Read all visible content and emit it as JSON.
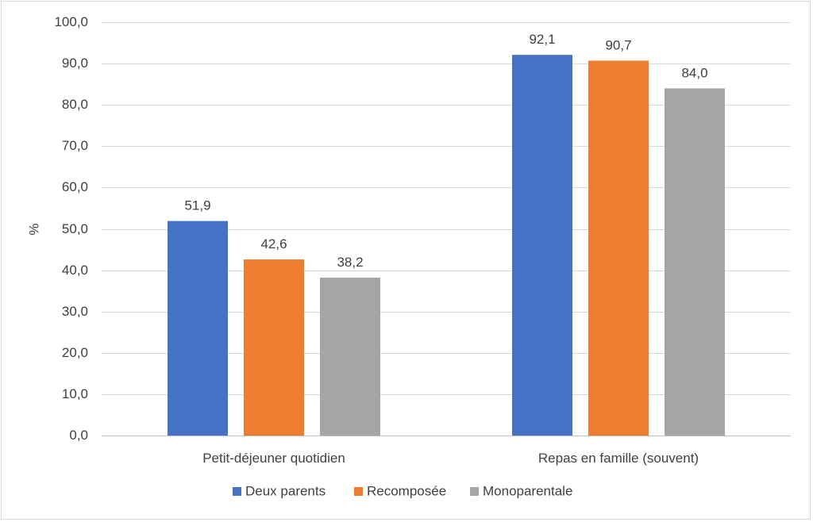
{
  "chart_data": {
    "type": "bar",
    "title": "",
    "xlabel": "",
    "ylabel": "%",
    "ylim": [
      0,
      100
    ],
    "yticks": [
      "0,0",
      "10,0",
      "20,0",
      "30,0",
      "40,0",
      "50,0",
      "60,0",
      "70,0",
      "80,0",
      "90,0",
      "100,0"
    ],
    "categories": [
      "Petit-déjeuner quotidien",
      "Repas en famille (souvent)"
    ],
    "series": [
      {
        "name": "Deux parents",
        "color": "#4472C4",
        "values": [
          51.9,
          92.1
        ],
        "labels": [
          "51,9",
          "92,1"
        ]
      },
      {
        "name": "Recomposée",
        "color": "#ED7D31",
        "values": [
          42.6,
          90.7
        ],
        "labels": [
          "42,6",
          "90,7"
        ]
      },
      {
        "name": "Monoparentale",
        "color": "#A5A5A5",
        "values": [
          38.2,
          84.0
        ],
        "labels": [
          "38,2",
          "84,0"
        ]
      }
    ],
    "grid": true,
    "legend_position": "bottom"
  }
}
